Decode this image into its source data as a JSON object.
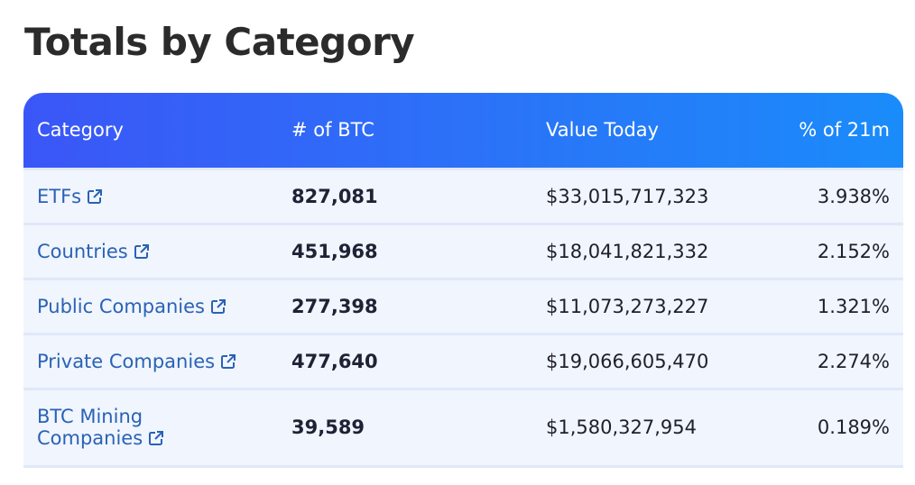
{
  "page": {
    "title": "Totals by Category"
  },
  "table": {
    "headers": {
      "category": "Category",
      "btc": "# of BTC",
      "value": "Value Today",
      "pct": "% of 21m"
    },
    "rows": [
      {
        "category": "ETFs",
        "btc": "827,081",
        "value": "$33,015,717,323",
        "pct": "3.938%",
        "icon": "external-link-icon"
      },
      {
        "category": "Countries",
        "btc": "451,968",
        "value": "$18,041,821,332",
        "pct": "2.152%",
        "icon": "external-link-icon"
      },
      {
        "category": "Public Companies",
        "btc": "277,398",
        "value": "$11,073,273,227",
        "pct": "1.321%",
        "icon": "external-link-icon"
      },
      {
        "category": "Private Companies",
        "btc": "477,640",
        "value": "$19,066,605,470",
        "pct": "2.274%",
        "icon": "external-link-icon"
      },
      {
        "category": "BTC Mining\nCompanies",
        "btc": "39,589",
        "value": "$1,580,327,954",
        "pct": "0.189%",
        "icon": "external-link-icon"
      }
    ]
  },
  "colors": {
    "header_gradient_start": "#3b56f7",
    "header_gradient_end": "#1a8cfa",
    "link": "#2a62b5",
    "row_bg": "#f0f5fe"
  }
}
